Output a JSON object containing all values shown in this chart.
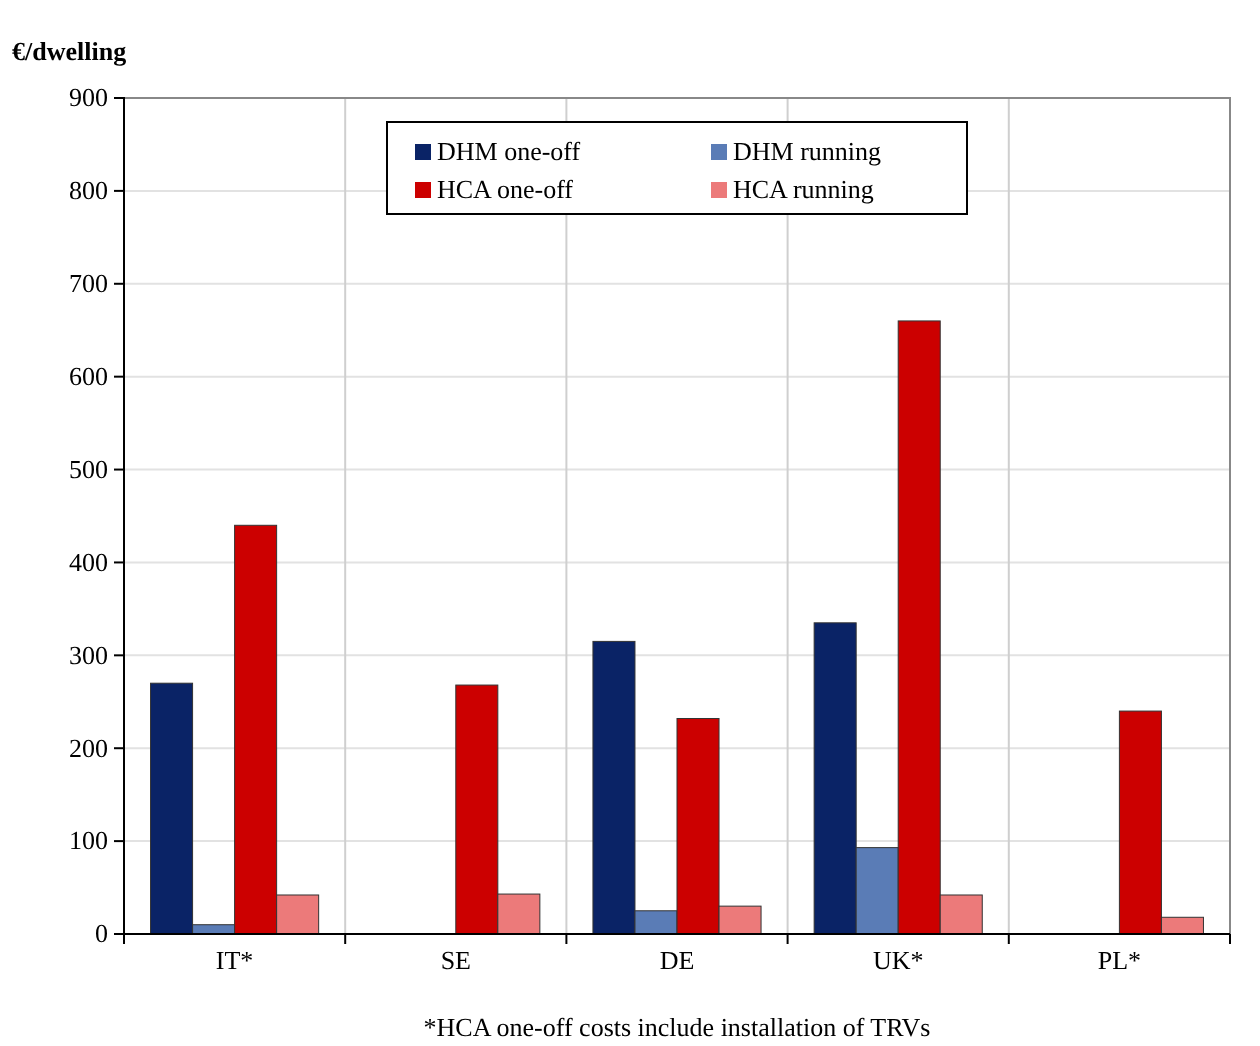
{
  "chart_data": {
    "type": "bar",
    "ylabel": "€/dwelling",
    "annotations": [
      "*HCA one-off costs include installation of TRVs"
    ],
    "categories": [
      "IT*",
      "SE",
      "DE",
      "UK*",
      "PL*"
    ],
    "series": [
      {
        "name": "DHM one-off",
        "color": "#0a2366",
        "values": [
          270,
          null,
          315,
          335,
          null
        ]
      },
      {
        "name": "DHM running",
        "color": "#5a7cb6",
        "values": [
          10,
          null,
          25,
          93,
          null
        ]
      },
      {
        "name": "HCA one-off",
        "color": "#cc0000",
        "values": [
          440,
          268,
          232,
          660,
          240
        ]
      },
      {
        "name": "HCA running",
        "color": "#ec7a7a",
        "values": [
          42,
          43,
          30,
          42,
          18
        ]
      }
    ],
    "ylim": [
      0,
      900
    ],
    "yticks": [
      0,
      100,
      200,
      300,
      400,
      500,
      600,
      700,
      800,
      900
    ],
    "grid": true,
    "legend": "top"
  }
}
